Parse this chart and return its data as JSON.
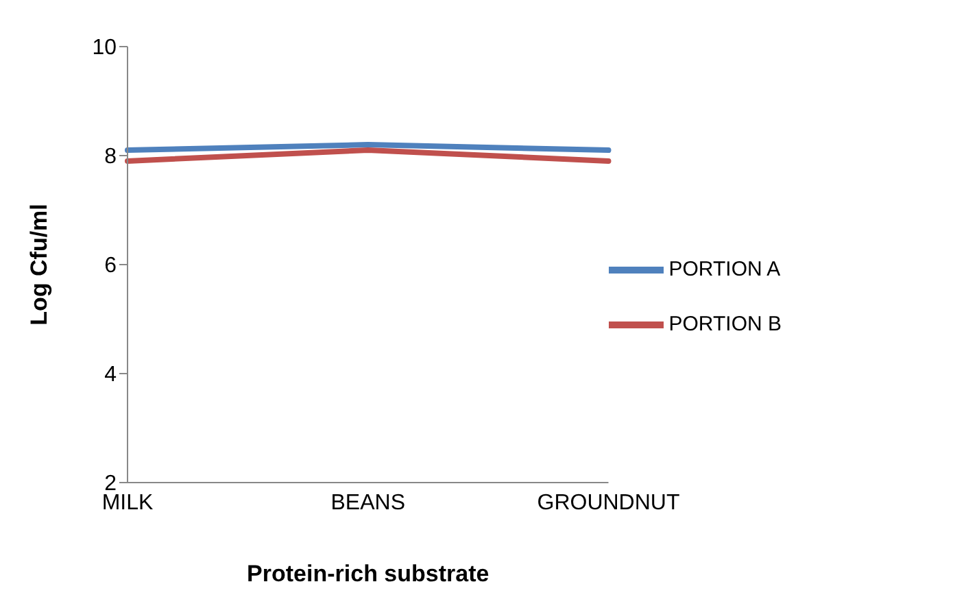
{
  "chart_data": {
    "type": "line",
    "xlabel": "Protein-rich substrate",
    "ylabel": "Log Cfu/ml",
    "categories": [
      "MILK",
      "BEANS",
      "GROUNDNUT"
    ],
    "series": [
      {
        "name": "PORTION A",
        "color": "#4f81bd",
        "values": [
          8.1,
          8.2,
          8.1
        ]
      },
      {
        "name": "PORTION B",
        "color": "#c0504d",
        "values": [
          7.9,
          8.1,
          7.9
        ]
      }
    ],
    "ylim": [
      2,
      10
    ],
    "yticks": [
      2,
      4,
      6,
      8,
      10
    ],
    "grid": false,
    "legend": "right",
    "marker": "none",
    "line_style": "solid"
  }
}
